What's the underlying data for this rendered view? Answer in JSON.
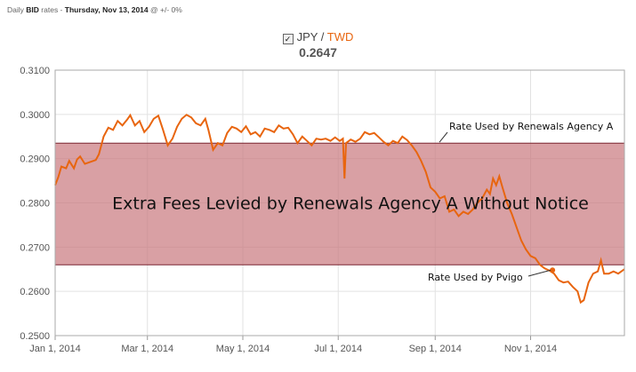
{
  "header": {
    "prefix": "Daily",
    "type": "BID",
    "mid": "rates -",
    "date": "Thursday, Nov 13, 2014",
    "suffix": "@ +/- 0%"
  },
  "pair": {
    "checkbox": "✓",
    "base": "JPY",
    "sep": " / ",
    "quote": "TWD"
  },
  "current_rate": "0.2647",
  "colors": {
    "line": "#e8650f",
    "band_fill": "#c9777e",
    "band_edge": "#7a2530",
    "plot_bg": "#ffffff",
    "grid": "#e2e2e2"
  },
  "chart_data": {
    "type": "line",
    "ylim": [
      0.25,
      0.31
    ],
    "yticks": [
      "0.2500",
      "0.2600",
      "0.2700",
      "0.2800",
      "0.2900",
      "0.3000",
      "0.3100"
    ],
    "xlim": [
      "2014-01-01",
      "2014-12-31"
    ],
    "xticks": [
      {
        "label": "Jan 1, 2014",
        "date": "2014-01-01"
      },
      {
        "label": "Mar 1, 2014",
        "date": "2014-03-01"
      },
      {
        "label": "May 1, 2014",
        "date": "2014-05-01"
      },
      {
        "label": "Jul 1, 2014",
        "date": "2014-07-01"
      },
      {
        "label": "Sep 1, 2014",
        "date": "2014-09-01"
      },
      {
        "label": "Nov 1, 2014",
        "date": "2014-11-01"
      }
    ],
    "grid": true,
    "series": [
      {
        "name": "JPY / TWD",
        "points": [
          [
            "2014-01-01",
            0.284
          ],
          [
            "2014-01-03",
            0.2858
          ],
          [
            "2014-01-05",
            0.2882
          ],
          [
            "2014-01-08",
            0.2878
          ],
          [
            "2014-01-10",
            0.2895
          ],
          [
            "2014-01-13",
            0.2878
          ],
          [
            "2014-01-15",
            0.2898
          ],
          [
            "2014-01-17",
            0.2905
          ],
          [
            "2014-01-20",
            0.2888
          ],
          [
            "2014-01-23",
            0.2892
          ],
          [
            "2014-01-27",
            0.2897
          ],
          [
            "2014-01-29",
            0.291
          ],
          [
            "2014-02-01",
            0.295
          ],
          [
            "2014-02-04",
            0.297
          ],
          [
            "2014-02-07",
            0.2965
          ],
          [
            "2014-02-10",
            0.2985
          ],
          [
            "2014-02-13",
            0.2975
          ],
          [
            "2014-02-16",
            0.2988
          ],
          [
            "2014-02-18",
            0.2998
          ],
          [
            "2014-02-21",
            0.2975
          ],
          [
            "2014-02-24",
            0.2985
          ],
          [
            "2014-02-27",
            0.296
          ],
          [
            "2014-03-02",
            0.2972
          ],
          [
            "2014-03-05",
            0.299
          ],
          [
            "2014-03-08",
            0.2997
          ],
          [
            "2014-03-11",
            0.2965
          ],
          [
            "2014-03-14",
            0.293
          ],
          [
            "2014-03-17",
            0.2945
          ],
          [
            "2014-03-20",
            0.2972
          ],
          [
            "2014-03-23",
            0.299
          ],
          [
            "2014-03-26",
            0.2999
          ],
          [
            "2014-03-29",
            0.2993
          ],
          [
            "2014-04-01",
            0.298
          ],
          [
            "2014-04-04",
            0.2975
          ],
          [
            "2014-04-07",
            0.299
          ],
          [
            "2014-04-09",
            0.2965
          ],
          [
            "2014-04-12",
            0.292
          ],
          [
            "2014-04-15",
            0.2935
          ],
          [
            "2014-04-18",
            0.293
          ],
          [
            "2014-04-21",
            0.2958
          ],
          [
            "2014-04-24",
            0.2972
          ],
          [
            "2014-04-27",
            0.2968
          ],
          [
            "2014-04-30",
            0.296
          ],
          [
            "2014-05-03",
            0.2973
          ],
          [
            "2014-05-06",
            0.2955
          ],
          [
            "2014-05-09",
            0.296
          ],
          [
            "2014-05-12",
            0.295
          ],
          [
            "2014-05-15",
            0.2968
          ],
          [
            "2014-05-18",
            0.2965
          ],
          [
            "2014-05-21",
            0.296
          ],
          [
            "2014-05-24",
            0.2975
          ],
          [
            "2014-05-27",
            0.2968
          ],
          [
            "2014-05-30",
            0.297
          ],
          [
            "2014-06-02",
            0.2955
          ],
          [
            "2014-06-05",
            0.2935
          ],
          [
            "2014-06-08",
            0.295
          ],
          [
            "2014-06-11",
            0.294
          ],
          [
            "2014-06-14",
            0.293
          ],
          [
            "2014-06-17",
            0.2945
          ],
          [
            "2014-06-20",
            0.2943
          ],
          [
            "2014-06-23",
            0.2945
          ],
          [
            "2014-06-26",
            0.294
          ],
          [
            "2014-06-29",
            0.2948
          ],
          [
            "2014-07-02",
            0.294
          ],
          [
            "2014-07-04",
            0.2945
          ],
          [
            "2014-07-05",
            0.2855
          ],
          [
            "2014-07-06",
            0.2935
          ],
          [
            "2014-07-09",
            0.2943
          ],
          [
            "2014-07-12",
            0.2938
          ],
          [
            "2014-07-15",
            0.2945
          ],
          [
            "2014-07-18",
            0.296
          ],
          [
            "2014-07-21",
            0.2955
          ],
          [
            "2014-07-24",
            0.2958
          ],
          [
            "2014-07-27",
            0.2948
          ],
          [
            "2014-07-30",
            0.2938
          ],
          [
            "2014-08-02",
            0.293
          ],
          [
            "2014-08-05",
            0.294
          ],
          [
            "2014-08-08",
            0.2935
          ],
          [
            "2014-08-11",
            0.295
          ],
          [
            "2014-08-14",
            0.2942
          ],
          [
            "2014-08-17",
            0.293
          ],
          [
            "2014-08-20",
            0.2915
          ],
          [
            "2014-08-23",
            0.2895
          ],
          [
            "2014-08-26",
            0.287
          ],
          [
            "2014-08-29",
            0.2835
          ],
          [
            "2014-09-01",
            0.2825
          ],
          [
            "2014-09-04",
            0.281
          ],
          [
            "2014-09-07",
            0.2815
          ],
          [
            "2014-09-10",
            0.278
          ],
          [
            "2014-09-13",
            0.2785
          ],
          [
            "2014-09-16",
            0.277
          ],
          [
            "2014-09-19",
            0.278
          ],
          [
            "2014-09-22",
            0.2775
          ],
          [
            "2014-09-25",
            0.2785
          ],
          [
            "2014-09-28",
            0.28
          ],
          [
            "2014-10-01",
            0.281
          ],
          [
            "2014-10-04",
            0.283
          ],
          [
            "2014-10-06",
            0.282
          ],
          [
            "2014-10-08",
            0.2855
          ],
          [
            "2014-10-10",
            0.284
          ],
          [
            "2014-10-12",
            0.286
          ],
          [
            "2014-10-14",
            0.2835
          ],
          [
            "2014-10-17",
            0.28
          ],
          [
            "2014-10-20",
            0.2775
          ],
          [
            "2014-10-23",
            0.2745
          ],
          [
            "2014-10-26",
            0.2715
          ],
          [
            "2014-10-29",
            0.2695
          ],
          [
            "2014-11-01",
            0.268
          ],
          [
            "2014-11-04",
            0.2675
          ],
          [
            "2014-11-07",
            0.266
          ],
          [
            "2014-11-10",
            0.2652
          ],
          [
            "2014-11-13",
            0.2647
          ],
          [
            "2014-11-16",
            0.264
          ],
          [
            "2014-11-19",
            0.2625
          ],
          [
            "2014-11-22",
            0.262
          ],
          [
            "2014-11-25",
            0.2622
          ],
          [
            "2014-11-28",
            0.261
          ],
          [
            "2014-12-01",
            0.26
          ],
          [
            "2014-12-03",
            0.2575
          ],
          [
            "2014-12-05",
            0.258
          ],
          [
            "2014-12-08",
            0.262
          ],
          [
            "2014-12-11",
            0.264
          ],
          [
            "2014-12-14",
            0.2645
          ],
          [
            "2014-12-16",
            0.267
          ],
          [
            "2014-12-18",
            0.264
          ],
          [
            "2014-12-21",
            0.264
          ],
          [
            "2014-12-24",
            0.2645
          ],
          [
            "2014-12-27",
            0.264
          ],
          [
            "2014-12-31",
            0.265
          ]
        ]
      }
    ],
    "band": {
      "low": 0.266,
      "high": 0.2935,
      "label": "Extra Fees Levied by Renewals Agency A Without Notice"
    },
    "annotations": [
      {
        "label": "Rate Used by Renewals Agency A",
        "value": 0.2935
      },
      {
        "label": "Rate Used by Pvigo",
        "value": 0.266,
        "marker_date": "2014-11-15"
      }
    ]
  }
}
